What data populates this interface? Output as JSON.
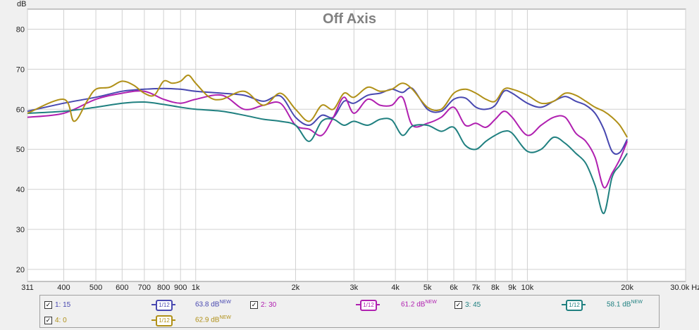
{
  "chart_data": {
    "type": "line",
    "title": "Off Axis",
    "ylabel": "dB",
    "xunit": "Hz",
    "xscale": "log",
    "xlim": [
      311,
      30000
    ],
    "ylim": [
      17,
      85
    ],
    "grid": true,
    "yticks": [
      20,
      30,
      40,
      50,
      60,
      70,
      80
    ],
    "xticks": [
      {
        "v": 311,
        "label": "311"
      },
      {
        "v": 400,
        "label": "400"
      },
      {
        "v": 500,
        "label": "500"
      },
      {
        "v": 600,
        "label": "600"
      },
      {
        "v": 700,
        "label": "700"
      },
      {
        "v": 800,
        "label": "800"
      },
      {
        "v": 900,
        "label": "900"
      },
      {
        "v": 1000,
        "label": "1k"
      },
      {
        "v": 2000,
        "label": "2k"
      },
      {
        "v": 3000,
        "label": "3k"
      },
      {
        "v": 4000,
        "label": "4k"
      },
      {
        "v": 5000,
        "label": "5k"
      },
      {
        "v": 6000,
        "label": "6k"
      },
      {
        "v": 7000,
        "label": "7k"
      },
      {
        "v": 8000,
        "label": "8k"
      },
      {
        "v": 9000,
        "label": "9k"
      },
      {
        "v": 10000,
        "label": "10k"
      },
      {
        "v": 20000,
        "label": "20k"
      },
      {
        "v": 30000,
        "label": "30.0k Hz"
      }
    ],
    "series": [
      {
        "name": "1: 15",
        "color": "#4848b0",
        "level": "63.8 dB",
        "x": [
          311,
          400,
          500,
          600,
          700,
          800,
          900,
          1000,
          1200,
          1400,
          1600,
          1800,
          2000,
          2200,
          2400,
          2600,
          2800,
          3000,
          3300,
          3600,
          3900,
          4200,
          4500,
          5000,
          5500,
          6000,
          6500,
          7000,
          7500,
          8000,
          8500,
          9000,
          10000,
          11000,
          12000,
          13000,
          14000,
          15000,
          16000,
          17000,
          18000,
          19000,
          20000
        ],
        "y": [
          59.5,
          61.5,
          63,
          64.5,
          65,
          65.2,
          65,
          64.5,
          64,
          63.5,
          62,
          63.3,
          58,
          56,
          58.5,
          58,
          62,
          61.5,
          63.5,
          64,
          65,
          64.2,
          65.2,
          60,
          59.5,
          62.5,
          62.8,
          60.5,
          60,
          61,
          64.5,
          64,
          61.5,
          60.5,
          62,
          63.2,
          62,
          61,
          59,
          55,
          49.5,
          49.2,
          52.5
        ]
      },
      {
        "name": "2: 30",
        "color": "#b020b0",
        "level": "61.2 dB",
        "x": [
          311,
          400,
          500,
          600,
          700,
          800,
          900,
          1000,
          1200,
          1400,
          1600,
          1800,
          2000,
          2200,
          2400,
          2600,
          2800,
          3000,
          3300,
          3600,
          3900,
          4200,
          4500,
          5000,
          5500,
          6000,
          6500,
          7000,
          7500,
          8000,
          8500,
          9000,
          10000,
          11000,
          12000,
          13000,
          14000,
          15000,
          16000,
          17000,
          18000,
          19000,
          20000
        ],
        "y": [
          58,
          59,
          62.5,
          64,
          64.5,
          62.5,
          61.5,
          62.5,
          63.5,
          60,
          61,
          61.5,
          56,
          55,
          53.5,
          58,
          63,
          59,
          62.5,
          61,
          61,
          63,
          56,
          56.5,
          58,
          60.5,
          56,
          56.5,
          55.5,
          57.5,
          59.5,
          58,
          53.5,
          56,
          58,
          58,
          54,
          52,
          48,
          40.5,
          44,
          47.5,
          52
        ]
      },
      {
        "name": "3: 45",
        "color": "#208080",
        "level": "58.1 dB",
        "x": [
          311,
          400,
          500,
          600,
          700,
          800,
          900,
          1000,
          1200,
          1400,
          1600,
          1800,
          2000,
          2200,
          2400,
          2600,
          2800,
          3000,
          3300,
          3600,
          3900,
          4200,
          4500,
          5000,
          5500,
          6000,
          6500,
          7000,
          7500,
          8000,
          8500,
          9000,
          10000,
          11000,
          12000,
          13000,
          14000,
          15000,
          16000,
          17000,
          18000,
          19000,
          20000
        ],
        "y": [
          59,
          59.5,
          60.5,
          61.5,
          61.8,
          61.2,
          60.5,
          60,
          59.5,
          58.5,
          57.5,
          57,
          56,
          52,
          57,
          57.5,
          56,
          57,
          56,
          57.5,
          57.3,
          53.5,
          55.8,
          56,
          54.5,
          55.5,
          51,
          50,
          52,
          53.5,
          54.5,
          54,
          49.5,
          50,
          53,
          51.5,
          49,
          46.5,
          41,
          34,
          43,
          46,
          49
        ]
      },
      {
        "name": "4: 0",
        "color": "#b09018",
        "level": "62.9 dB",
        "x": [
          311,
          400,
          430,
          470,
          500,
          550,
          600,
          650,
          700,
          750,
          800,
          850,
          900,
          950,
          1000,
          1100,
          1200,
          1400,
          1600,
          1800,
          2000,
          2200,
          2400,
          2600,
          2800,
          3000,
          3300,
          3600,
          3900,
          4200,
          4500,
          5000,
          5500,
          6000,
          6500,
          7000,
          7500,
          8000,
          8500,
          9000,
          10000,
          11000,
          12000,
          13000,
          14000,
          15000,
          16000,
          17000,
          18000,
          19000,
          20000
        ],
        "y": [
          59,
          62.5,
          57,
          62,
          65,
          65.5,
          67,
          66,
          64,
          63.5,
          67,
          66.5,
          67,
          68.5,
          66.5,
          63,
          62.5,
          64.5,
          61,
          64,
          60,
          57,
          61,
          60,
          64,
          63,
          65.5,
          64.5,
          65,
          66.5,
          65,
          60.5,
          60,
          64,
          65,
          64,
          62.5,
          62,
          65,
          65,
          63.5,
          61.5,
          62,
          64,
          63.5,
          62,
          60.5,
          59.5,
          58,
          56,
          53
        ]
      }
    ]
  },
  "legend": {
    "items": [
      {
        "check": "✓",
        "label": "1: 15",
        "smooth": "1/12",
        "level": "63.8 dB",
        "badge": "NEW"
      },
      {
        "check": "✓",
        "label": "2: 30",
        "smooth": "1/12",
        "level": "61.2 dB",
        "badge": "NEW"
      },
      {
        "check": "✓",
        "label": "3: 45",
        "smooth": "1/12",
        "level": "58.1 dB",
        "badge": "NEW"
      },
      {
        "check": "✓",
        "label": "4: 0",
        "smooth": "1/12",
        "level": "62.9 dB",
        "badge": "NEW"
      }
    ]
  }
}
